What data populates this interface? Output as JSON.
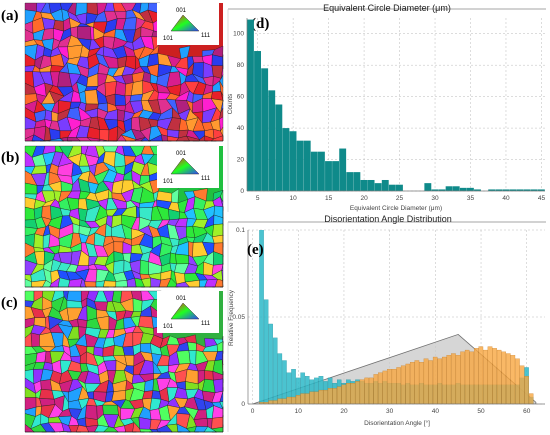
{
  "panel_labels": {
    "a": "(a)",
    "b": "(b)",
    "c": "(c)",
    "d": "(d)",
    "e": "(e)"
  },
  "ipf_legend": {
    "top": "001",
    "left": "101",
    "right": "111"
  },
  "colors": {
    "ecd_bars": "#0f8a8a",
    "misorientation_bars": "#2bb8c8",
    "fitted_bars": "#f7a640",
    "reference_curve": "#a0a0a0"
  },
  "chart_data": [
    {
      "type": "bar",
      "title": "Equivalent Circle Diameter (μm)",
      "xlabel": "Equivalent Circle Diameter (μm)",
      "ylabel": "Counts",
      "xlim": [
        3.5,
        45.5
      ],
      "ylim": [
        0,
        110
      ],
      "xticks": [
        5,
        10,
        15,
        20,
        25,
        30,
        35,
        40,
        45
      ],
      "yticks": [
        0,
        20,
        40,
        60,
        80,
        100
      ],
      "grid": true,
      "bin_width": 1,
      "x": [
        4,
        5,
        6,
        7,
        8,
        9,
        10,
        11,
        12,
        13,
        14,
        15,
        16,
        17,
        18,
        19,
        20,
        21,
        22,
        23,
        24,
        25,
        26,
        27,
        28,
        29,
        30,
        31,
        32,
        33,
        34,
        35,
        36,
        37,
        38,
        39,
        40,
        41,
        42,
        43,
        44,
        45
      ],
      "values": [
        109,
        89,
        78,
        64,
        55,
        40,
        38,
        32,
        32,
        25,
        25,
        19,
        19,
        27,
        12,
        12,
        7,
        7,
        5,
        7,
        4,
        4,
        0,
        0,
        0,
        5,
        1,
        1,
        3,
        3,
        2,
        2,
        1,
        0,
        1,
        1,
        1,
        1,
        1,
        1,
        1,
        1
      ]
    },
    {
      "type": "bar",
      "title": "Disorientation Angle Distribution",
      "xlabel": "Disorientation Angle [°]",
      "ylabel": "Relative Frequency",
      "xlim": [
        -1,
        64
      ],
      "ylim": [
        0,
        0.1
      ],
      "xticks": [
        0,
        10,
        20,
        30,
        40,
        50,
        60
      ],
      "yticks": [
        0,
        0.05,
        0.1
      ],
      "ytick_labels": [
        "0",
        "0.05",
        "0.1"
      ],
      "grid": true,
      "bin_width": 1,
      "x": [
        2,
        3,
        4,
        5,
        6,
        7,
        8,
        9,
        10,
        11,
        12,
        13,
        14,
        15,
        16,
        17,
        18,
        19,
        20,
        21,
        22,
        23,
        24,
        25,
        26,
        27,
        28,
        29,
        30,
        31,
        32,
        33,
        34,
        35,
        36,
        37,
        38,
        39,
        40,
        41,
        42,
        43,
        44,
        45,
        46,
        47,
        48,
        49,
        50,
        51,
        52,
        53,
        54,
        55,
        56,
        57,
        58,
        59,
        60,
        61
      ],
      "series": [
        {
          "values": [
            0.101,
            0.06,
            0.046,
            0.038,
            0.029,
            0.025,
            0.018,
            0.02,
            0.015,
            0.018,
            0.016,
            0.014,
            0.015,
            0.016,
            0.013,
            0.015,
            0.012,
            0.014,
            0.012,
            0.014,
            0.013,
            0.014,
            0.013,
            0.012,
            0.012,
            0.013,
            0.012,
            0.013,
            0.012,
            0.012,
            0.012,
            0.011,
            0.012,
            0.011,
            0.011,
            0.012,
            0.011,
            0.011,
            0.011,
            0.012,
            0.011,
            0.011,
            0.011,
            0.012,
            0.011,
            0.011,
            0.011,
            0.011,
            0.011,
            0.011,
            0.011,
            0.011,
            0.011,
            0.011,
            0.011,
            0.011,
            0.011,
            0.015,
            0.021,
            0.004
          ]
        },
        {
          "values": [
            0.001,
            0.001,
            0.002,
            0.002,
            0.003,
            0.003,
            0.004,
            0.004,
            0.005,
            0.006,
            0.006,
            0.007,
            0.007,
            0.008,
            0.008,
            0.009,
            0.009,
            0.01,
            0.011,
            0.012,
            0.012,
            0.013,
            0.014,
            0.015,
            0.015,
            0.017,
            0.018,
            0.019,
            0.02,
            0.02,
            0.021,
            0.022,
            0.023,
            0.024,
            0.025,
            0.024,
            0.026,
            0.025,
            0.027,
            0.026,
            0.027,
            0.028,
            0.029,
            0.028,
            0.03,
            0.031,
            0.03,
            0.032,
            0.033,
            0.031,
            0.033,
            0.032,
            0.031,
            0.03,
            0.029,
            0.028,
            0.026,
            0.022,
            0.016,
            0.006
          ]
        }
      ],
      "reference_curve": {
        "x": [
          0,
          45,
          62
        ],
        "y": [
          0,
          0.04,
          0.001
        ]
      }
    }
  ]
}
